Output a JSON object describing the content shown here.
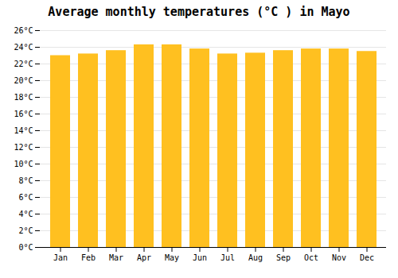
{
  "chart_data": {
    "type": "bar",
    "title": "Average monthly temperatures (°C ) in Mayo",
    "categories": [
      "Jan",
      "Feb",
      "Mar",
      "Apr",
      "May",
      "Jun",
      "Jul",
      "Aug",
      "Sep",
      "Oct",
      "Nov",
      "Dec"
    ],
    "values": [
      23.0,
      23.2,
      23.6,
      24.3,
      24.3,
      23.8,
      23.2,
      23.3,
      23.6,
      23.8,
      23.8,
      23.5
    ],
    "color": "#FFC020",
    "ylim": [
      0,
      26
    ],
    "yticks": [
      {
        "value": 0,
        "label": "0°C"
      },
      {
        "value": 2,
        "label": "2°C"
      },
      {
        "value": 4,
        "label": "4°C"
      },
      {
        "value": 6,
        "label": "6°C"
      },
      {
        "value": 8,
        "label": "8°C"
      },
      {
        "value": 10,
        "label": "10°C"
      },
      {
        "value": 12,
        "label": "12°C"
      },
      {
        "value": 14,
        "label": "14°C"
      },
      {
        "value": 16,
        "label": "16°C"
      },
      {
        "value": 18,
        "label": "18°C"
      },
      {
        "value": 20,
        "label": "20°C"
      },
      {
        "value": 22,
        "label": "22°C"
      },
      {
        "value": 24,
        "label": "24°C"
      },
      {
        "value": 26,
        "label": "26°C"
      }
    ],
    "grid": true
  }
}
